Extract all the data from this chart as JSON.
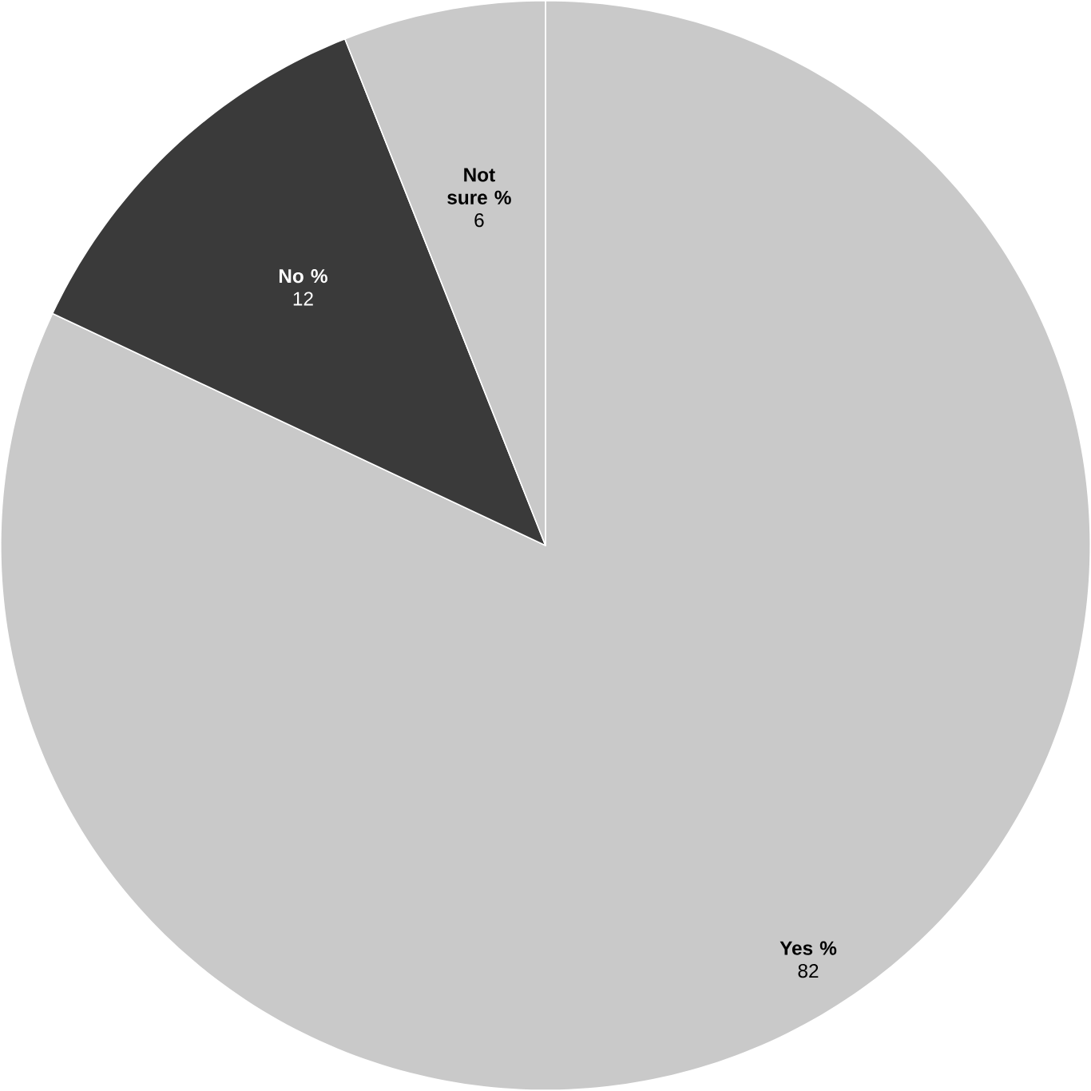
{
  "chart_data": {
    "type": "pie",
    "categories": [
      "Yes %",
      "No %",
      "Not sure %"
    ],
    "values": [
      82,
      12,
      6
    ],
    "colors": [
      "#c9c9c9",
      "#3a3a3a",
      "#c9c9c9"
    ],
    "data_labels": true
  }
}
